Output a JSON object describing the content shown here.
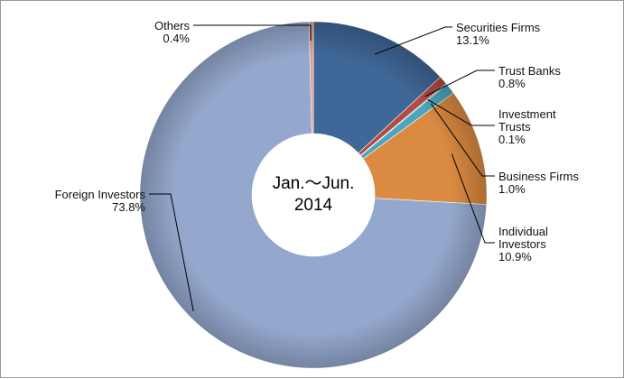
{
  "chart_data": {
    "type": "pie",
    "style": "donut",
    "center_text": [
      "Jan.～Jun.",
      "2014"
    ],
    "slices": [
      {
        "name": "Securities Firms",
        "value": 13.1,
        "label": "13.1%",
        "color": "#3f6797"
      },
      {
        "name": "Trust Banks",
        "value": 0.8,
        "label": "0.8%",
        "color": "#b34a45"
      },
      {
        "name": "Investment Trusts",
        "value": 0.1,
        "label": "0.1%",
        "color": "#2f8f8a"
      },
      {
        "name": "Business Firms",
        "value": 1.0,
        "label": "1.0%",
        "color": "#4ba6bd"
      },
      {
        "name": "Individual Investors",
        "value": 10.9,
        "label": "10.9%",
        "color": "#db8a42"
      },
      {
        "name": "Foreign Investors",
        "value": 73.8,
        "label": "73.8%",
        "color": "#94a8cd"
      },
      {
        "name": "Others",
        "value": 0.4,
        "label": "0.4%",
        "color": "#e39a8c"
      }
    ],
    "labels": [
      {
        "lines": [
          "Securities Firms"
        ],
        "pct": "13.1%"
      },
      {
        "lines": [
          "Trust Banks"
        ],
        "pct": "0.8%"
      },
      {
        "lines": [
          "Investment",
          "Trusts"
        ],
        "pct": "0.1%"
      },
      {
        "lines": [
          "Business Firms"
        ],
        "pct": "1.0%"
      },
      {
        "lines": [
          "Individual",
          "Investors"
        ],
        "pct": "10.9%"
      },
      {
        "lines": [
          "Foreign Investors"
        ],
        "pct": "73.8%"
      },
      {
        "lines": [
          "Others"
        ],
        "pct": "0.4%"
      }
    ]
  }
}
